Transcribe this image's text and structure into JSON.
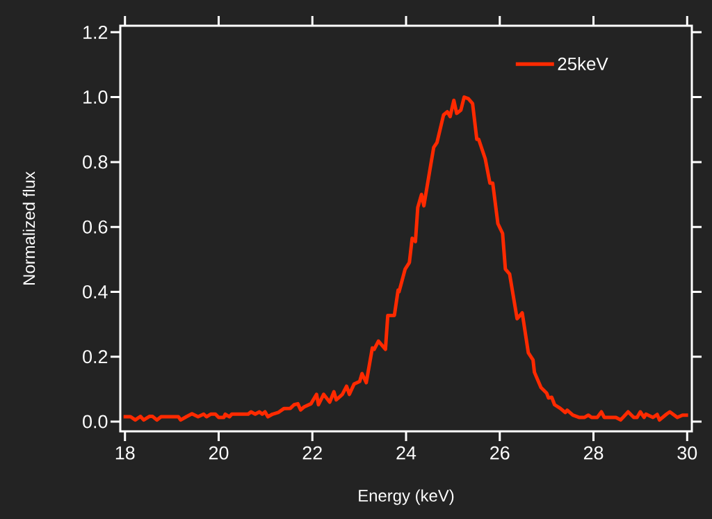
{
  "chart_data": {
    "type": "line",
    "xlabel": "Energy (keV)",
    "ylabel": "Normalized flux",
    "xlim": [
      17.9,
      30.1
    ],
    "ylim": [
      -0.03,
      1.22
    ],
    "xticks": [
      18,
      20,
      22,
      24,
      26,
      28,
      30
    ],
    "yticks": [
      {
        "value": 0,
        "label": "0.0"
      },
      {
        "value": 0.2,
        "label": "0.2"
      },
      {
        "value": 0.4,
        "label": "0.4"
      },
      {
        "value": 0.6,
        "label": "0.6"
      },
      {
        "value": 0.8,
        "label": "0.8"
      },
      {
        "value": 1.0,
        "label": "1.0"
      },
      {
        "value": 1.2,
        "label": "1.2"
      }
    ],
    "legend": "top right",
    "grid": false,
    "marker": "none",
    "line_style": "solid",
    "series": [
      {
        "name": "25keV",
        "color": "#ff2a00",
        "x": [
          17.97,
          18.12,
          18.22,
          18.33,
          18.4,
          18.52,
          18.59,
          18.68,
          18.77,
          19.14,
          19.19,
          19.31,
          19.43,
          19.56,
          19.68,
          19.74,
          19.83,
          19.93,
          20.0,
          20.11,
          20.14,
          20.23,
          20.28,
          20.63,
          20.69,
          20.78,
          20.87,
          20.93,
          20.99,
          21.05,
          21.15,
          21.27,
          21.39,
          21.53,
          21.61,
          21.69,
          21.75,
          21.82,
          21.97,
          22.09,
          22.13,
          22.24,
          22.37,
          22.46,
          22.51,
          22.64,
          22.73,
          22.79,
          22.89,
          23.01,
          23.06,
          23.15,
          23.28,
          23.32,
          23.41,
          23.56,
          23.61,
          23.75,
          23.83,
          23.85,
          23.98,
          24.07,
          24.13,
          24.2,
          24.25,
          24.33,
          24.38,
          24.51,
          24.59,
          24.66,
          24.8,
          24.88,
          24.94,
          25.02,
          25.08,
          25.17,
          25.24,
          25.33,
          25.42,
          25.51,
          25.55,
          25.69,
          25.79,
          25.85,
          25.96,
          26.06,
          26.12,
          26.21,
          26.37,
          26.48,
          26.61,
          26.71,
          26.74,
          26.88,
          27.0,
          27.04,
          27.11,
          27.17,
          27.29,
          27.4,
          27.44,
          27.56,
          27.69,
          27.81,
          27.89,
          27.96,
          28.08,
          28.17,
          28.23,
          28.48,
          28.58,
          28.74,
          28.86,
          28.93,
          29.0,
          29.08,
          29.12,
          29.27,
          29.36,
          29.41,
          29.56,
          29.63,
          29.79,
          29.9,
          30.02
        ],
        "values": [
          0.015,
          0.015,
          0.005,
          0.016,
          0.005,
          0.016,
          0.016,
          0.005,
          0.015,
          0.015,
          0.005,
          0.015,
          0.024,
          0.015,
          0.023,
          0.015,
          0.023,
          0.023,
          0.013,
          0.013,
          0.023,
          0.015,
          0.023,
          0.023,
          0.03,
          0.023,
          0.03,
          0.023,
          0.03,
          0.015,
          0.023,
          0.028,
          0.04,
          0.041,
          0.052,
          0.055,
          0.036,
          0.045,
          0.055,
          0.084,
          0.052,
          0.084,
          0.06,
          0.092,
          0.067,
          0.084,
          0.109,
          0.084,
          0.116,
          0.124,
          0.148,
          0.12,
          0.227,
          0.223,
          0.248,
          0.223,
          0.327,
          0.327,
          0.405,
          0.4,
          0.47,
          0.49,
          0.565,
          0.555,
          0.66,
          0.7,
          0.665,
          0.777,
          0.845,
          0.86,
          0.945,
          0.955,
          0.94,
          0.99,
          0.95,
          0.96,
          1.0,
          0.995,
          0.98,
          0.87,
          0.87,
          0.81,
          0.735,
          0.735,
          0.61,
          0.58,
          0.47,
          0.455,
          0.317,
          0.335,
          0.212,
          0.19,
          0.152,
          0.105,
          0.088,
          0.073,
          0.075,
          0.052,
          0.041,
          0.028,
          0.035,
          0.02,
          0.013,
          0.013,
          0.02,
          0.013,
          0.013,
          0.03,
          0.013,
          0.013,
          0.005,
          0.03,
          0.013,
          0.013,
          0.03,
          0.013,
          0.023,
          0.013,
          0.022,
          0.005,
          0.023,
          0.03,
          0.013,
          0.02,
          0.02
        ]
      }
    ]
  }
}
